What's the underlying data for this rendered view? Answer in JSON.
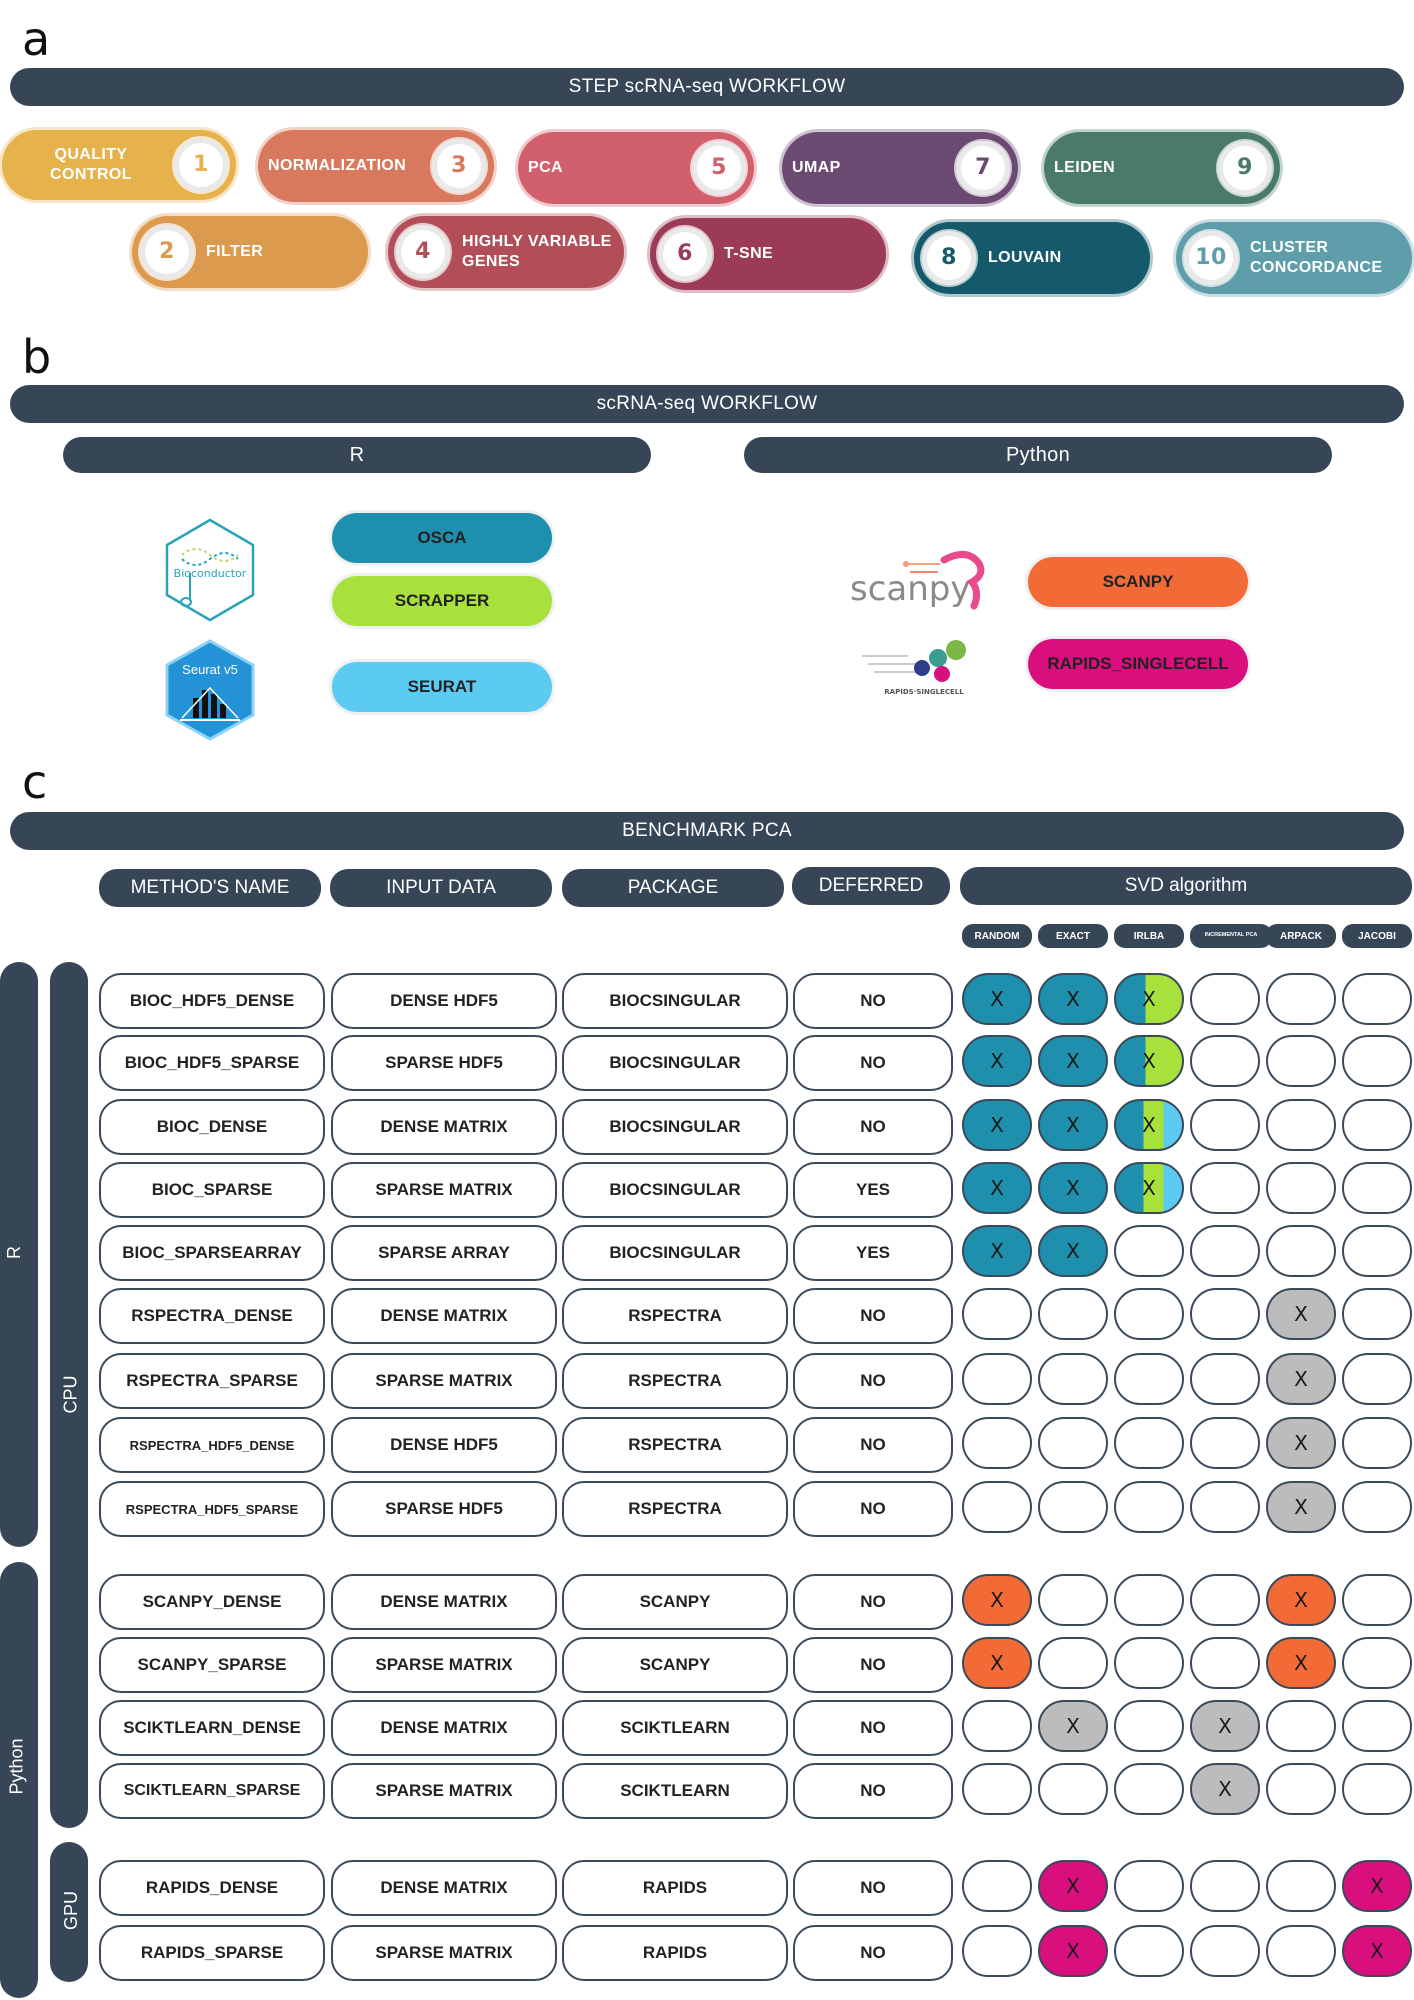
{
  "panels": {
    "a": "a",
    "b": "b",
    "c": "c"
  },
  "a": {
    "title": "STEP scRNA-seq WORKFLOW",
    "steps": [
      {
        "num": "1",
        "label": "QUALITY CONTROL",
        "color": "#e6b24c"
      },
      {
        "num": "2",
        "label": "FILTER",
        "color": "#dc9a4f"
      },
      {
        "num": "3",
        "label": "NORMALIZATION",
        "color": "#d8785c"
      },
      {
        "num": "4",
        "label": "HIGHLY VARIABLE GENES",
        "color": "#b24e58"
      },
      {
        "num": "5",
        "label": "PCA",
        "color": "#d2606c"
      },
      {
        "num": "6",
        "label": "T-SNE",
        "color": "#9b3b55"
      },
      {
        "num": "7",
        "label": "UMAP",
        "color": "#6b4a72"
      },
      {
        "num": "8",
        "label": "LOUVAIN",
        "color": "#155a6a"
      },
      {
        "num": "9",
        "label": "LEIDEN",
        "color": "#4a7a6c"
      },
      {
        "num": "10",
        "label": "CLUSTER CONCORDANCE",
        "color": "#5e9eaa"
      }
    ]
  },
  "b": {
    "title": "scRNA-seq WORKFLOW",
    "r_label": "R",
    "python_label": "Python",
    "bioconductor_logo": "Bioconductor",
    "seurat_logo": "Seurat v5",
    "scanpy_logo": "scanpy",
    "rapids_logo": "RAPIDS·SINGLECELL",
    "tools": {
      "osca": "OSCA",
      "scrapper": "SCRAPPER",
      "seurat": "SEURAT",
      "scanpy": "SCANPY",
      "rapids": "RAPIDS_SINGLECELL"
    },
    "colors": {
      "osca": "#1e8fad",
      "scrapper": "#a8e13b",
      "seurat": "#5ccbf2",
      "scanpy": "#f26a36",
      "rapids": "#d90f7e"
    }
  },
  "c": {
    "title": "BENCHMARK PCA",
    "headers": {
      "method": "METHOD'S NAME",
      "input": "INPUT DATA",
      "package": "PACKAGE",
      "deferred": "DEFERRED",
      "svd": "SVD algorithm"
    },
    "algorithms": [
      "RANDOM",
      "EXACT",
      "IRLBA",
      "INCREMENTAL PCA",
      "ARPACK",
      "JACOBI"
    ],
    "side_labels": {
      "r": "R",
      "python": "Python",
      "cpu": "CPU",
      "gpu": "GPU"
    },
    "mark": "X",
    "colors": {
      "bioc": "#1e8fad",
      "scrapper": "#a8e13b",
      "seurat": "#5ccbf2",
      "gray": "#bcbcbc",
      "scanpy": "#f26a36",
      "rapids": "#d90f7e"
    },
    "rows": [
      {
        "name": "BIOC_HDF5_DENSE",
        "input": "DENSE HDF5",
        "package": "BIOCSINGULAR",
        "deferred": "NO",
        "marks": [
          "bioc",
          "bioc",
          "bioc+scrapper",
          "",
          "",
          ""
        ]
      },
      {
        "name": "BIOC_HDF5_SPARSE",
        "input": "SPARSE HDF5",
        "package": "BIOCSINGULAR",
        "deferred": "NO",
        "marks": [
          "bioc",
          "bioc",
          "bioc+scrapper",
          "",
          "",
          ""
        ]
      },
      {
        "name": "BIOC_DENSE",
        "input": "DENSE MATRIX",
        "package": "BIOCSINGULAR",
        "deferred": "NO",
        "marks": [
          "bioc",
          "bioc",
          "bioc+scrapper+seurat",
          "",
          "",
          ""
        ]
      },
      {
        "name": "BIOC_SPARSE",
        "input": "SPARSE MATRIX",
        "package": "BIOCSINGULAR",
        "deferred": "YES",
        "marks": [
          "bioc",
          "bioc",
          "bioc+scrapper+seurat",
          "",
          "",
          ""
        ]
      },
      {
        "name": "BIOC_SPARSEARRAY",
        "input": "SPARSE ARRAY",
        "package": "BIOCSINGULAR",
        "deferred": "YES",
        "marks": [
          "bioc",
          "bioc",
          "",
          "",
          "",
          ""
        ]
      },
      {
        "name": "RSPECTRA_DENSE",
        "input": "DENSE MATRIX",
        "package": "RSPECTRA",
        "deferred": "NO",
        "marks": [
          "",
          "",
          "",
          "",
          "gray",
          ""
        ]
      },
      {
        "name": "RSPECTRA_SPARSE",
        "input": "SPARSE MATRIX",
        "package": "RSPECTRA",
        "deferred": "NO",
        "marks": [
          "",
          "",
          "",
          "",
          "gray",
          ""
        ]
      },
      {
        "name": "RSPECTRA_HDF5_DENSE",
        "input": "DENSE HDF5",
        "package": "RSPECTRA",
        "deferred": "NO",
        "marks": [
          "",
          "",
          "",
          "",
          "gray",
          ""
        ]
      },
      {
        "name": "RSPECTRA_HDF5_SPARSE",
        "input": "SPARSE HDF5",
        "package": "RSPECTRA",
        "deferred": "NO",
        "marks": [
          "",
          "",
          "",
          "",
          "gray",
          ""
        ]
      },
      {
        "name": "SCANPY_DENSE",
        "input": "DENSE MATRIX",
        "package": "SCANPY",
        "deferred": "NO",
        "marks": [
          "scanpy",
          "",
          "",
          "",
          "scanpy",
          ""
        ]
      },
      {
        "name": "SCANPY_SPARSE",
        "input": "SPARSE MATRIX",
        "package": "SCANPY",
        "deferred": "NO",
        "marks": [
          "scanpy",
          "",
          "",
          "",
          "scanpy",
          ""
        ]
      },
      {
        "name": "SCIKTLEARN_DENSE",
        "input": "DENSE MATRIX",
        "package": "SCIKTLEARN",
        "deferred": "NO",
        "marks": [
          "",
          "gray",
          "",
          "gray",
          "",
          ""
        ]
      },
      {
        "name": "SCIKTLEARN_SPARSE",
        "input": "SPARSE MATRIX",
        "package": "SCIKTLEARN",
        "deferred": "NO",
        "marks": [
          "",
          "",
          "",
          "gray",
          "",
          ""
        ]
      },
      {
        "name": "RAPIDS_DENSE",
        "input": "DENSE MATRIX",
        "package": "RAPIDS",
        "deferred": "NO",
        "marks": [
          "",
          "rapids",
          "",
          "",
          "",
          "rapids"
        ]
      },
      {
        "name": "RAPIDS_SPARSE",
        "input": "SPARSE MATRIX",
        "package": "RAPIDS",
        "deferred": "NO",
        "marks": [
          "",
          "rapids",
          "",
          "",
          "",
          "rapids"
        ]
      }
    ]
  }
}
